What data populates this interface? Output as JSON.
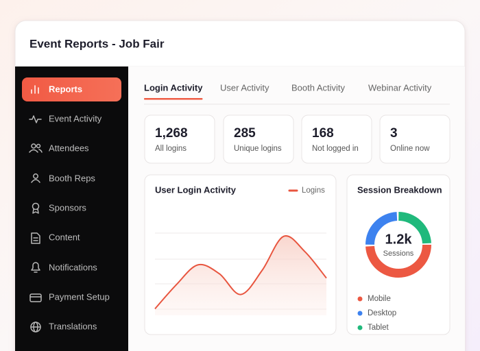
{
  "header": {
    "title": "Event Reports - Job Fair"
  },
  "sidebar": {
    "active": 0,
    "items": [
      "Reports",
      "Event Activity",
      "Attendees",
      "Booth Reps",
      "Sponsors",
      "Content",
      "Notifications",
      "Payment Setup",
      "Translations"
    ]
  },
  "tabs": {
    "active": 0,
    "items": [
      "Login Activity",
      "User Activity",
      "Booth Activity",
      "Webinar Activity"
    ]
  },
  "stats": [
    {
      "value": "1,268",
      "label": "All logins"
    },
    {
      "value": "285",
      "label": "Unique logins"
    },
    {
      "value": "168",
      "label": "Not logged in"
    },
    {
      "value": "3",
      "label": "Online now"
    }
  ],
  "login_chart": {
    "type": "line",
    "title": "User Login Activity",
    "series": [
      {
        "name": "Logins",
        "color": "#e8553f",
        "values": [
          6,
          28,
          46,
          38,
          19,
          41,
          72,
          58,
          34
        ]
      }
    ],
    "ylim": [
      0,
      100
    ]
  },
  "session_chart": {
    "type": "donut",
    "title": "Session Breakdown",
    "center_value": "1.2k",
    "center_label": "Sessions",
    "categories": [
      "Mobile",
      "Desktop",
      "Tablet"
    ],
    "values": [
      50,
      25,
      25
    ],
    "colors": [
      "#ec5842",
      "#3d82ef",
      "#20b97c"
    ]
  }
}
